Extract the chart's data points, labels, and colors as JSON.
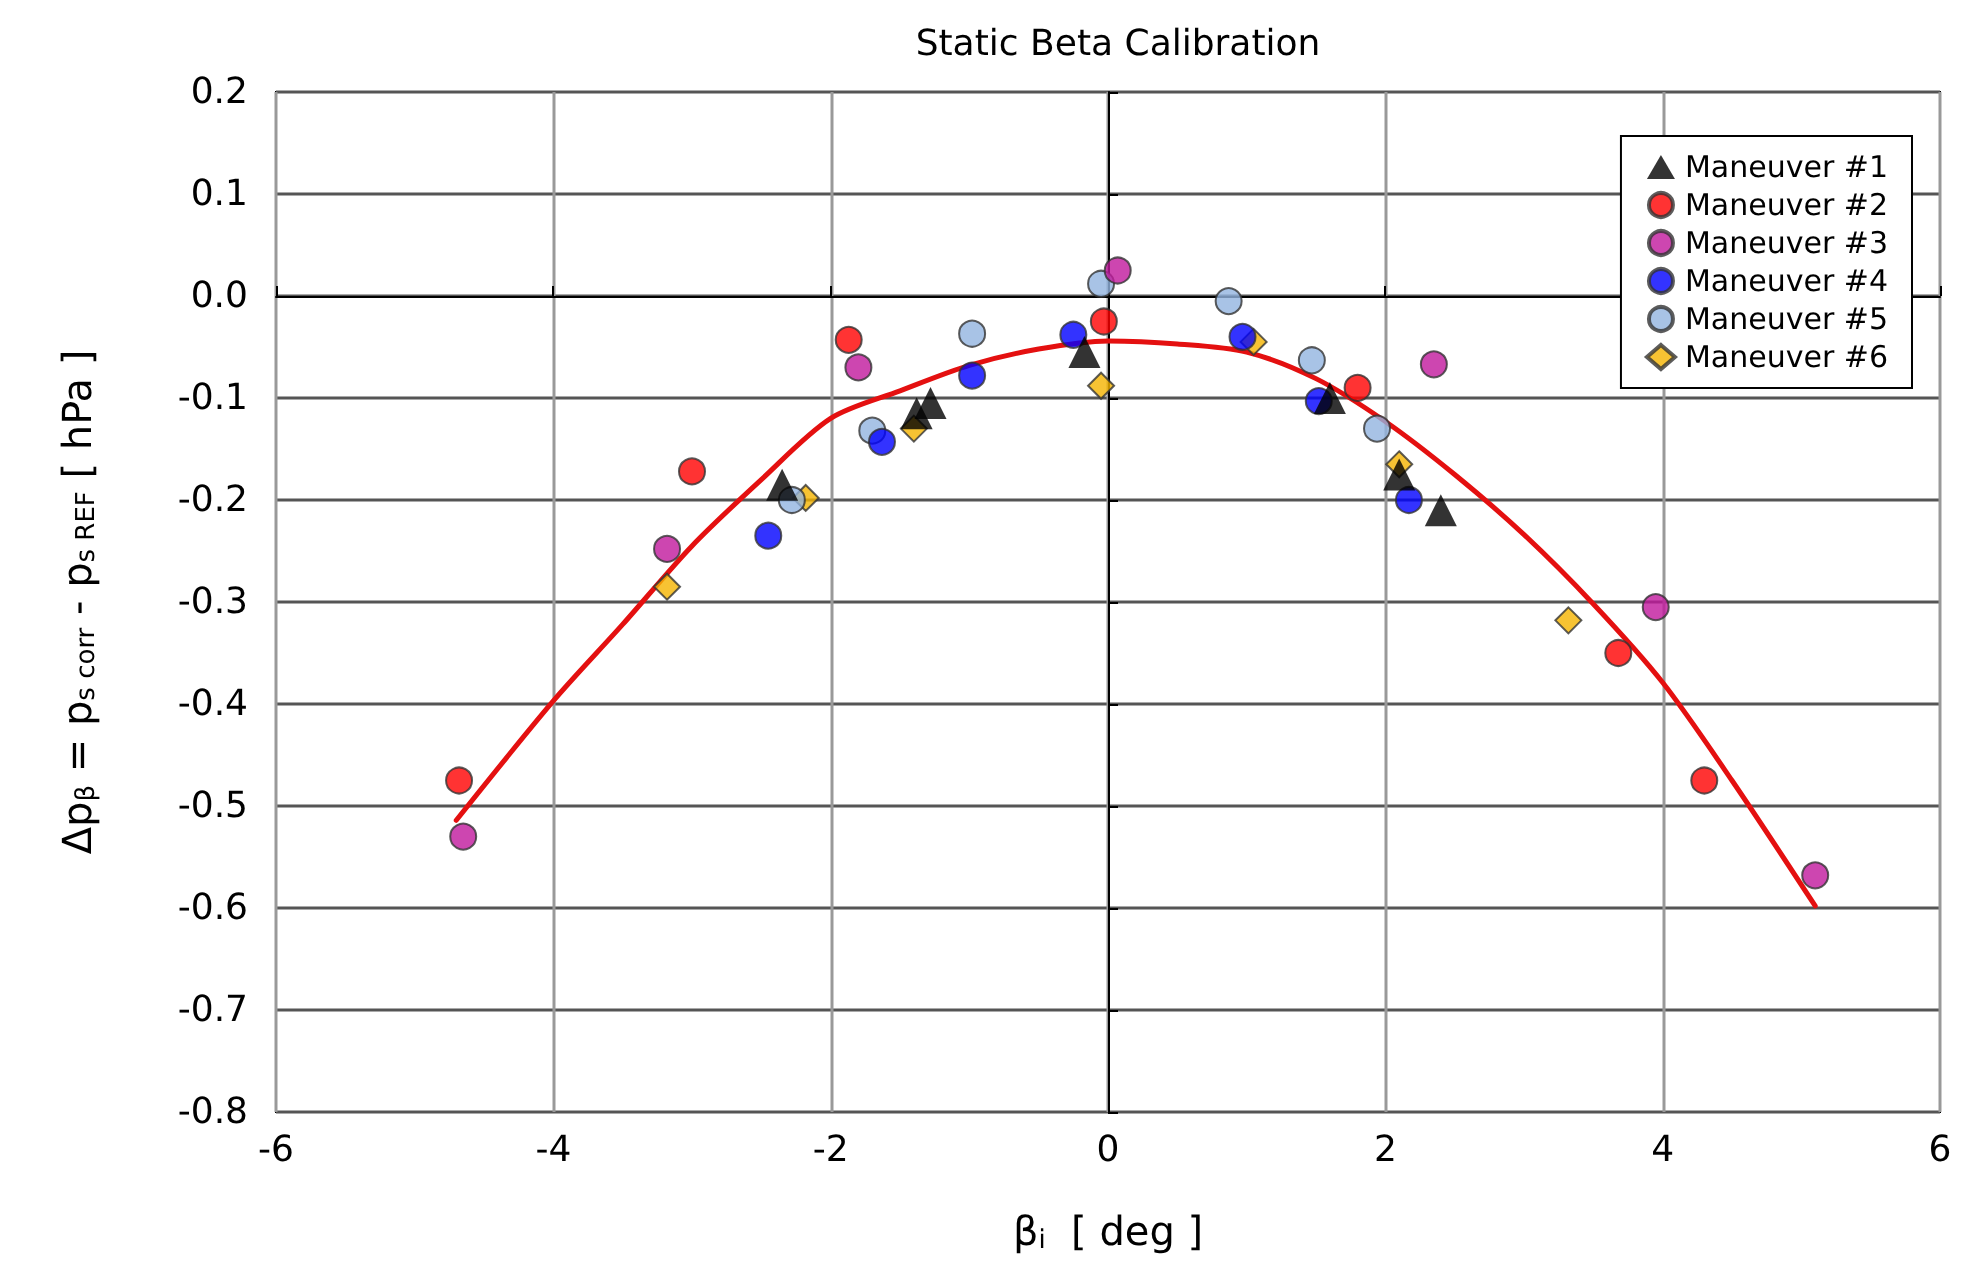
{
  "chart_data": {
    "type": "scatter",
    "title": "Static Beta Calibration",
    "xlabel": "β$_{i}$  [ deg ]",
    "ylabel": "Δp$_{β}$ = p$_{s corr}$ - p$_{s REF}$ [ hPa ]",
    "xlim": [
      -6,
      6
    ],
    "xticks": [
      -6,
      -4,
      -2,
      0,
      2,
      4,
      6
    ],
    "ylim": [
      -0.8,
      0.2
    ],
    "yticks": [
      {
        "value": -0.8,
        "label": "-0.8"
      },
      {
        "value": -0.7,
        "label": "-0.7"
      },
      {
        "value": -0.6,
        "label": "-0.6"
      },
      {
        "value": -0.5,
        "label": "-0.5"
      },
      {
        "value": -0.4,
        "label": "-0.4"
      },
      {
        "value": -0.3,
        "label": "-0.3"
      },
      {
        "value": -0.2,
        "label": "-0.2"
      },
      {
        "value": -0.1,
        "label": "-0.1"
      },
      {
        "value": 0,
        "label": "0.0"
      },
      {
        "value": 0.1,
        "label": "0.1"
      },
      {
        "value": 0.2,
        "label": "0.2"
      }
    ],
    "grid": true,
    "legend": "top right",
    "series": [
      {
        "name": "Maneuver #1",
        "color": "#000000",
        "marker": "triangle",
        "x": [
          -2.35,
          -1.38,
          -1.28,
          -0.17,
          1.6,
          2.1,
          2.4
        ],
        "values": [
          -0.185,
          -0.115,
          -0.105,
          -0.055,
          -0.1,
          -0.175,
          -0.21
        ]
      },
      {
        "name": "Maneuver #2",
        "color": "#ff0000",
        "marker": "circle",
        "x": [
          -4.68,
          -3.0,
          -1.87,
          -0.03,
          1.8,
          3.68,
          4.3
        ],
        "values": [
          -0.475,
          -0.172,
          -0.043,
          -0.025,
          -0.09,
          -0.35,
          -0.475
        ]
      },
      {
        "name": "Maneuver #3",
        "color": "#c0189c",
        "marker": "circle",
        "x": [
          -4.65,
          -3.18,
          -1.8,
          0.07,
          2.35,
          3.95,
          5.1
        ],
        "values": [
          -0.53,
          -0.248,
          -0.07,
          0.025,
          -0.067,
          -0.305,
          -0.568
        ]
      },
      {
        "name": "Maneuver #4",
        "color": "#0000ff",
        "marker": "circle",
        "x": [
          -2.45,
          -1.63,
          -0.98,
          -0.25,
          0.97,
          1.52,
          2.17
        ],
        "values": [
          -0.235,
          -0.143,
          -0.078,
          -0.038,
          -0.04,
          -0.103,
          -0.2
        ]
      },
      {
        "name": "Maneuver #5",
        "color": "#92b4e0",
        "marker": "circle",
        "x": [
          -2.28,
          -1.7,
          -0.98,
          -0.05,
          0.87,
          1.47,
          1.94
        ],
        "values": [
          -0.2,
          -0.132,
          -0.037,
          0.012,
          -0.005,
          -0.063,
          -0.13
        ]
      },
      {
        "name": "Maneuver #6",
        "color": "#f5b400",
        "marker": "diamond",
        "x": [
          -3.18,
          -2.18,
          -1.4,
          -0.05,
          1.05,
          2.1,
          3.32
        ],
        "values": [
          -0.285,
          -0.198,
          -0.13,
          -0.088,
          -0.045,
          -0.165,
          -0.318
        ]
      },
      {
        "type": "line",
        "color": "#e41010",
        "marker": "none",
        "line_style": "solid",
        "x": [
          -4.7,
          -4,
          -3.5,
          -3,
          -2.5,
          -2,
          -1.5,
          -1,
          -0.5,
          0,
          0.5,
          1,
          1.5,
          2,
          2.5,
          3,
          3.5,
          4,
          4.5,
          5.1
        ],
        "values": [
          -0.514,
          -0.397,
          -0.322,
          -0.245,
          -0.18,
          -0.12,
          -0.093,
          -0.068,
          -0.052,
          -0.044,
          -0.047,
          -0.055,
          -0.081,
          -0.123,
          -0.175,
          -0.234,
          -0.302,
          -0.379,
          -0.475,
          -0.598
        ]
      }
    ]
  }
}
